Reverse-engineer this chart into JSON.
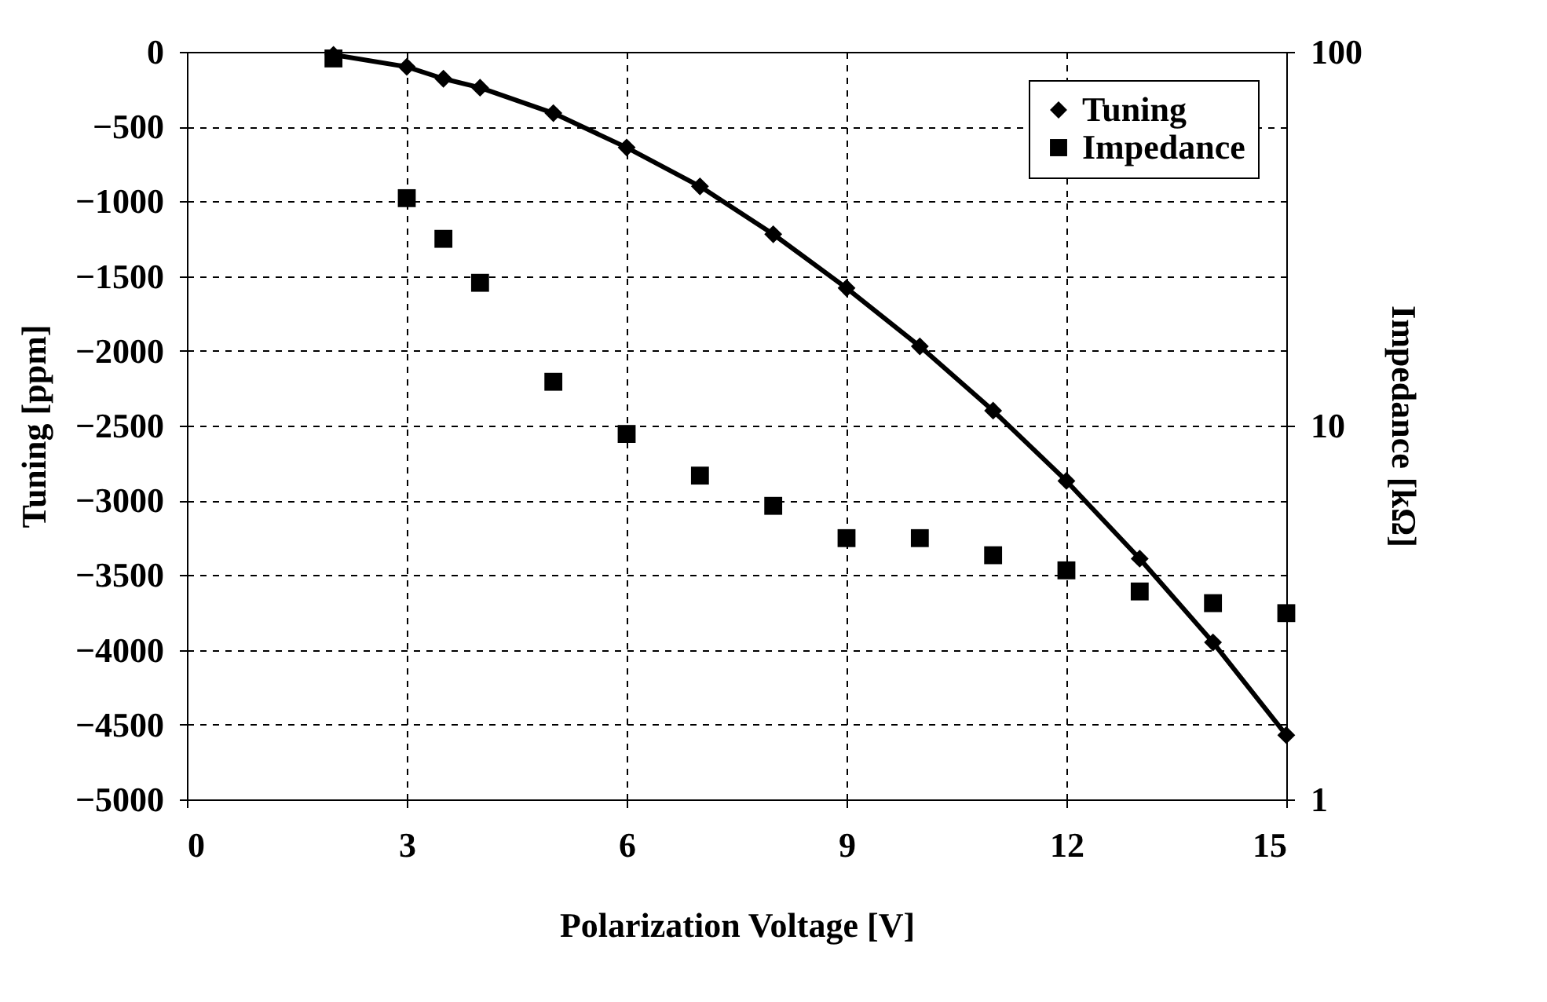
{
  "chart_data": {
    "type": "line",
    "xlabel": "Polarization Voltage [V]",
    "ylabel": "Tuning [ppm]",
    "y2label": "Impedance [kΩ]",
    "xlim": [
      0,
      15
    ],
    "xticks": [
      0,
      3,
      6,
      9,
      12,
      15
    ],
    "ylim": [
      -5000,
      0
    ],
    "yticks": [
      -5000,
      -4500,
      -4000,
      -3500,
      -3000,
      -2500,
      -2000,
      -1500,
      -1000,
      -500,
      0
    ],
    "y2lim": [
      1,
      100
    ],
    "y2ticks": [
      1,
      10,
      100
    ],
    "log": "y2",
    "grid": true,
    "legend": "top right",
    "series": [
      {
        "name": "Tuning",
        "type": "line",
        "marker": "diamond",
        "color": "#000000",
        "x": [
          2,
          3,
          3.5,
          4,
          5,
          6,
          7,
          8,
          9,
          10,
          11,
          12,
          13,
          14,
          15
        ],
        "values": [
          -20,
          -100,
          -180,
          -240,
          -410,
          -640,
          -900,
          -1220,
          -1580,
          -1970,
          -2400,
          -2870,
          -3390,
          -3950,
          -4570
        ]
      },
      {
        "name": "Impedance",
        "type": "scatter",
        "marker": "square",
        "axis": "y2",
        "color": "#000000",
        "x": [
          2,
          3,
          3.5,
          4,
          5,
          6,
          7,
          8,
          9,
          10,
          11,
          12,
          13,
          14,
          15
        ],
        "values": [
          96,
          40.6,
          31.6,
          24.1,
          13.1,
          9.5,
          7.35,
          6.1,
          5.0,
          5.0,
          4.5,
          4.1,
          3.6,
          3.35,
          3.15
        ]
      }
    ]
  }
}
